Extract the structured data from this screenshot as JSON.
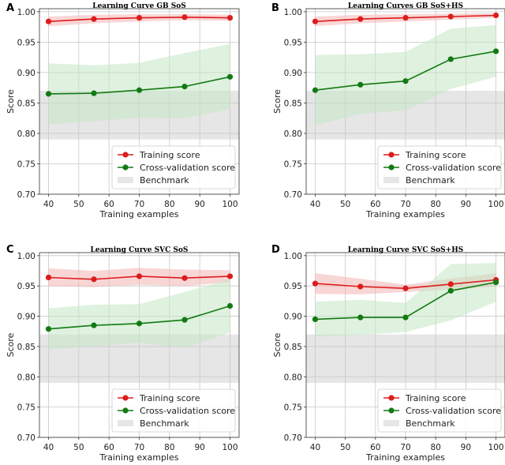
{
  "chart_data": [
    {
      "type": "line",
      "panel_letter": "A",
      "title": "Learning Curve GB SoS",
      "xlabel": "Training examples",
      "ylabel": "Score",
      "xlim": [
        37,
        103
      ],
      "ylim": [
        0.7,
        1.005
      ],
      "xticks": [
        40,
        50,
        60,
        70,
        80,
        90,
        100
      ],
      "yticks": [
        0.7,
        0.75,
        0.8,
        0.85,
        0.9,
        0.95,
        1.0
      ],
      "ytick_labels": [
        "0.70",
        "0.75",
        "0.80",
        "0.85",
        "0.90",
        "0.95",
        "1.00"
      ],
      "grid": true,
      "legend_location": "lower-right",
      "benchmark": {
        "name": "Benchmark",
        "low": 0.79,
        "high": 0.87,
        "color": "#e6e6e6"
      },
      "x": [
        40,
        55,
        70,
        85,
        100
      ],
      "series": [
        {
          "name": "Training score",
          "color": "#dd1c1c",
          "band_color": "#f4b4b4",
          "values": [
            0.984,
            0.988,
            0.99,
            0.991,
            0.99
          ],
          "lower": [
            0.976,
            0.981,
            0.984,
            0.986,
            0.985
          ],
          "upper": [
            0.992,
            0.995,
            0.996,
            0.996,
            0.995
          ]
        },
        {
          "name": "Cross-validation score",
          "color": "#127a12",
          "band_color": "#c4e6c4",
          "values": [
            0.865,
            0.866,
            0.871,
            0.877,
            0.893
          ],
          "lower": [
            0.815,
            0.82,
            0.826,
            0.825,
            0.84
          ],
          "upper": [
            0.915,
            0.912,
            0.916,
            0.932,
            0.947
          ]
        }
      ]
    },
    {
      "type": "line",
      "panel_letter": "B",
      "title": "Learning Curves GB SoS+HS",
      "xlabel": "Training examples",
      "ylabel": "Score",
      "xlim": [
        37,
        103
      ],
      "ylim": [
        0.7,
        1.005
      ],
      "xticks": [
        40,
        50,
        60,
        70,
        80,
        90,
        100
      ],
      "yticks": [
        0.7,
        0.75,
        0.8,
        0.85,
        0.9,
        0.95,
        1.0
      ],
      "ytick_labels": [
        "0.70",
        "0.75",
        "0.80",
        "0.85",
        "0.90",
        "0.95",
        "1.00"
      ],
      "grid": true,
      "legend_location": "lower-right",
      "benchmark": {
        "name": "Benchmark",
        "low": 0.79,
        "high": 0.87,
        "color": "#e6e6e6"
      },
      "x": [
        40,
        55,
        70,
        85,
        100
      ],
      "series": [
        {
          "name": "Training score",
          "color": "#dd1c1c",
          "band_color": "#f4b4b4",
          "values": [
            0.984,
            0.988,
            0.99,
            0.992,
            0.994
          ],
          "lower": [
            0.976,
            0.981,
            0.984,
            0.987,
            0.99
          ],
          "upper": [
            0.992,
            0.995,
            0.996,
            0.997,
            0.998
          ]
        },
        {
          "name": "Cross-validation score",
          "color": "#127a12",
          "band_color": "#c4e6c4",
          "values": [
            0.871,
            0.88,
            0.886,
            0.922,
            0.935
          ],
          "lower": [
            0.813,
            0.832,
            0.838,
            0.873,
            0.893
          ],
          "upper": [
            0.929,
            0.93,
            0.934,
            0.972,
            0.978
          ]
        }
      ]
    },
    {
      "type": "line",
      "panel_letter": "C",
      "title": "Learning Curve SVC SoS",
      "xlabel": "Training examples",
      "ylabel": "Score",
      "xlim": [
        37,
        103
      ],
      "ylim": [
        0.7,
        1.005
      ],
      "xticks": [
        40,
        50,
        60,
        70,
        80,
        90,
        100
      ],
      "yticks": [
        0.7,
        0.75,
        0.8,
        0.85,
        0.9,
        0.95,
        1.0
      ],
      "ytick_labels": [
        "0.70",
        "0.75",
        "0.80",
        "0.85",
        "0.90",
        "0.95",
        "1.00"
      ],
      "grid": true,
      "legend_location": "lower-right",
      "benchmark": {
        "name": "Benchmark",
        "low": 0.79,
        "high": 0.87,
        "color": "#e6e6e6"
      },
      "x": [
        40,
        55,
        70,
        85,
        100
      ],
      "series": [
        {
          "name": "Training score",
          "color": "#dd1c1c",
          "band_color": "#f4b4b4",
          "values": [
            0.964,
            0.961,
            0.966,
            0.963,
            0.966
          ],
          "lower": [
            0.95,
            0.948,
            0.952,
            0.95,
            0.956
          ],
          "upper": [
            0.979,
            0.975,
            0.98,
            0.977,
            0.976
          ]
        },
        {
          "name": "Cross-validation score",
          "color": "#127a12",
          "band_color": "#c4e6c4",
          "values": [
            0.879,
            0.885,
            0.888,
            0.894,
            0.917
          ],
          "lower": [
            0.845,
            0.851,
            0.856,
            0.848,
            0.873
          ],
          "upper": [
            0.913,
            0.919,
            0.92,
            0.94,
            0.961
          ]
        }
      ]
    },
    {
      "type": "line",
      "panel_letter": "D",
      "title": "Learning Curve SVC SoS+HS",
      "xlabel": "Training examples",
      "ylabel": "Score",
      "xlim": [
        37,
        103
      ],
      "ylim": [
        0.7,
        1.005
      ],
      "xticks": [
        40,
        50,
        60,
        70,
        80,
        90,
        100
      ],
      "yticks": [
        0.7,
        0.75,
        0.8,
        0.85,
        0.9,
        0.95,
        1.0
      ],
      "ytick_labels": [
        "0.70",
        "0.75",
        "0.80",
        "0.85",
        "0.90",
        "0.95",
        "1.00"
      ],
      "grid": true,
      "legend_location": "lower-right",
      "benchmark": {
        "name": "Benchmark",
        "low": 0.79,
        "high": 0.87,
        "color": "#e6e6e6"
      },
      "x": [
        40,
        55,
        70,
        85,
        100
      ],
      "series": [
        {
          "name": "Training score",
          "color": "#dd1c1c",
          "band_color": "#f4b4b4",
          "values": [
            0.954,
            0.949,
            0.946,
            0.953,
            0.96
          ],
          "lower": [
            0.937,
            0.936,
            0.94,
            0.944,
            0.949
          ],
          "upper": [
            0.971,
            0.962,
            0.952,
            0.962,
            0.971
          ]
        },
        {
          "name": "Cross-validation score",
          "color": "#127a12",
          "band_color": "#c4e6c4",
          "values": [
            0.895,
            0.898,
            0.898,
            0.942,
            0.956
          ],
          "lower": [
            0.866,
            0.869,
            0.874,
            0.893,
            0.924
          ],
          "upper": [
            0.924,
            0.927,
            0.922,
            0.986,
            0.988
          ]
        }
      ]
    }
  ]
}
